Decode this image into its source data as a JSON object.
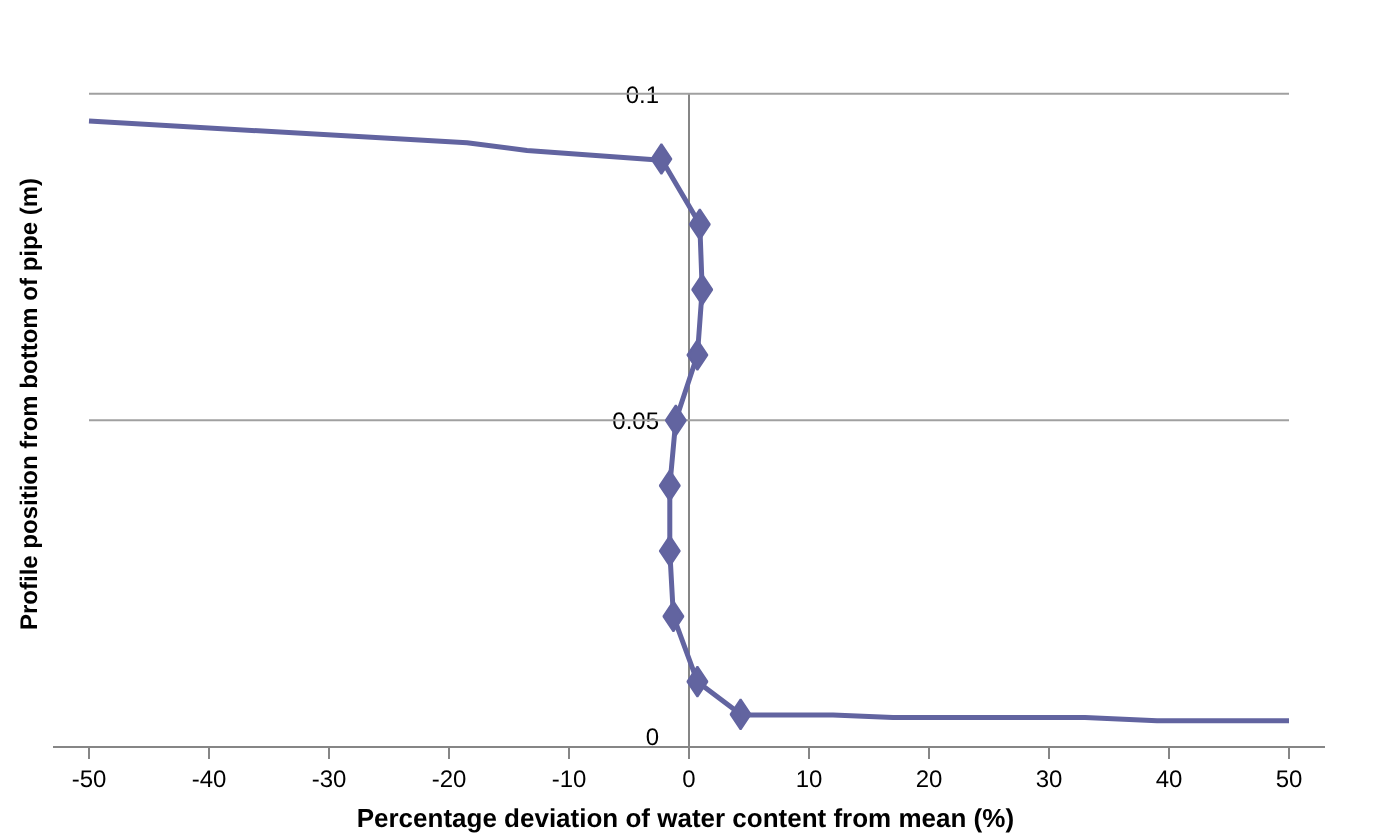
{
  "chart_data": {
    "type": "line",
    "xlabel": "Percentage deviation of water content  from mean (%)",
    "ylabel": "Profile position from bottom of pipe (m)",
    "xlim": [
      -50,
      50
    ],
    "ylim": [
      0,
      0.1
    ],
    "xticks": [
      -50,
      -40,
      -30,
      -20,
      -10,
      0,
      10,
      20,
      30,
      40,
      50
    ],
    "yticks": [
      0,
      0.05,
      0.1
    ],
    "grid": "y",
    "series": [
      {
        "color": "#6264a0",
        "marker": "none",
        "x": [
          -50,
          -18.5,
          -13.5,
          -2.3
        ],
        "values": [
          0.0958,
          0.0925,
          0.0913,
          0.0898
        ]
      },
      {
        "color": "#6264a0",
        "marker": "diamond",
        "x": [
          -2.3,
          0.9,
          1.1,
          0.7,
          -1.1,
          -1.6,
          -1.6,
          -1.3,
          0.7,
          4.3
        ],
        "values": [
          0.09,
          0.08,
          0.07,
          0.06,
          0.05,
          0.04,
          0.03,
          0.02,
          0.01,
          0.005
        ]
      },
      {
        "color": "#6264a0",
        "marker": "none",
        "x": [
          4.3,
          12,
          17,
          33,
          39,
          50
        ],
        "values": [
          0.0049,
          0.0049,
          0.0045,
          0.0045,
          0.004,
          0.004
        ]
      }
    ]
  }
}
